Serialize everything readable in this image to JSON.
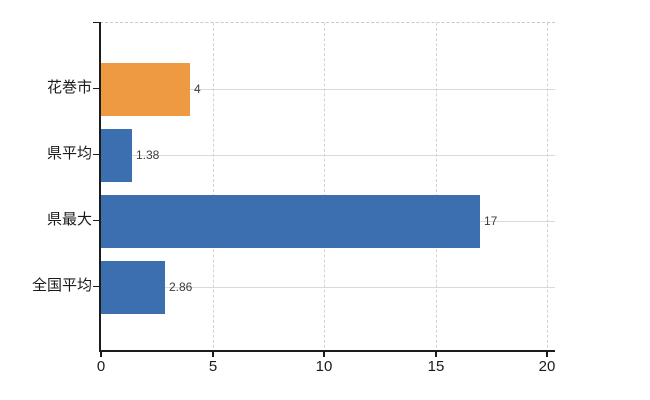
{
  "chart_data": {
    "type": "bar",
    "orientation": "horizontal",
    "title": "",
    "xlabel": "",
    "ylabel": "",
    "categories": [
      "花巻市",
      "県平均",
      "県最大",
      "全国平均"
    ],
    "values": [
      4,
      1.38,
      17,
      2.86
    ],
    "value_labels": [
      "4",
      "1.38",
      "17",
      "2.86"
    ],
    "bar_colors": [
      "#ed9a42",
      "#3c6fb0",
      "#3c6fb0",
      "#3c6fb0"
    ],
    "x_ticks": [
      0,
      5,
      10,
      15,
      20
    ],
    "x_tick_labels": [
      "0",
      "5",
      "10",
      "15",
      "20"
    ],
    "xlim": [
      0,
      20.35
    ],
    "grid": true,
    "legend": false
  },
  "colors": {
    "highlight_bar": "#ed9a42",
    "default_bar": "#3c6fb0",
    "axis": "#1c1c1c",
    "h_gridline": "#d7ddd6",
    "v_gridline": "#d6d2cf",
    "top_border": "#c9c9c6",
    "value_label": "#3d3d3d",
    "tick_label": "#1a1a1a",
    "background": "#ffffff"
  }
}
